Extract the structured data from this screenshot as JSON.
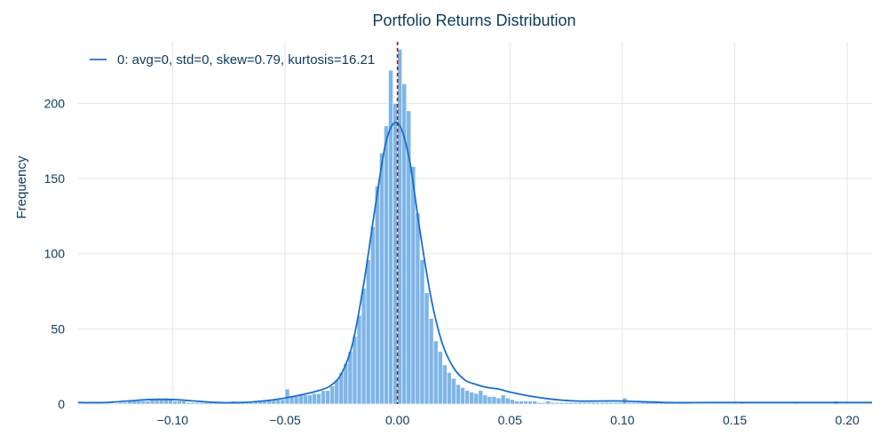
{
  "chart_data": {
    "type": "bar",
    "title": "Portfolio Returns Distribution",
    "xlabel": "",
    "ylabel": "Frequency",
    "xlim": [
      -0.142,
      0.211
    ],
    "ylim": [
      0,
      241
    ],
    "x_ticks": [
      -0.1,
      -0.05,
      0.0,
      0.05,
      0.1,
      0.15,
      0.2
    ],
    "x_tick_labels": [
      "−0.10",
      "−0.05",
      "0.00",
      "0.05",
      "0.10",
      "0.15",
      "0.20"
    ],
    "y_ticks": [
      0,
      50,
      100,
      150,
      200
    ],
    "y_tick_labels": [
      "0",
      "50",
      "100",
      "150",
      "200"
    ],
    "grid": true,
    "legend": {
      "position": "top-left",
      "entries": [
        "0: avg=0, std=0, skew=0.79, kurtosis=16.21"
      ]
    },
    "bin_width": 0.002,
    "histogram": {
      "bin_start": [
        -0.142,
        -0.14,
        -0.138,
        -0.136,
        -0.134,
        -0.132,
        -0.13,
        -0.128,
        -0.126,
        -0.124,
        -0.122,
        -0.12,
        -0.118,
        -0.116,
        -0.114,
        -0.112,
        -0.11,
        -0.108,
        -0.106,
        -0.104,
        -0.102,
        -0.1,
        -0.098,
        -0.096,
        -0.094,
        -0.092,
        -0.09,
        -0.088,
        -0.086,
        -0.084,
        -0.082,
        -0.08,
        -0.078,
        -0.076,
        -0.074,
        -0.072,
        -0.07,
        -0.068,
        -0.066,
        -0.064,
        -0.062,
        -0.06,
        -0.058,
        -0.056,
        -0.054,
        -0.052,
        -0.05,
        -0.048,
        -0.046,
        -0.044,
        -0.042,
        -0.04,
        -0.038,
        -0.036,
        -0.034,
        -0.032,
        -0.03,
        -0.028,
        -0.026,
        -0.024,
        -0.022,
        -0.02,
        -0.018,
        -0.016,
        -0.014,
        -0.012,
        -0.01,
        -0.008,
        -0.006,
        -0.004,
        -0.002,
        0.0,
        0.002,
        0.004,
        0.006,
        0.008,
        0.01,
        0.012,
        0.014,
        0.016,
        0.018,
        0.02,
        0.022,
        0.024,
        0.026,
        0.028,
        0.03,
        0.032,
        0.034,
        0.036,
        0.038,
        0.04,
        0.042,
        0.044,
        0.046,
        0.048,
        0.05,
        0.052,
        0.054,
        0.056,
        0.058,
        0.06,
        0.062,
        0.064,
        0.066,
        0.068,
        0.07,
        0.072,
        0.074,
        0.076,
        0.078,
        0.08,
        0.082,
        0.084,
        0.086,
        0.088,
        0.09,
        0.092,
        0.094,
        0.096,
        0.098,
        0.1,
        0.102,
        0.104,
        0.106,
        0.108,
        0.11,
        0.112,
        0.114,
        0.116,
        0.118,
        0.12,
        0.122,
        0.124,
        0.126,
        0.128,
        0.13,
        0.132,
        0.134,
        0.136,
        0.138,
        0.14,
        0.142,
        0.144,
        0.146,
        0.148,
        0.15,
        0.152,
        0.154,
        0.156,
        0.158,
        0.16,
        0.162,
        0.164,
        0.166,
        0.168,
        0.17,
        0.172,
        0.174,
        0.176,
        0.178,
        0.18,
        0.182,
        0.184,
        0.186,
        0.188,
        0.19,
        0.192,
        0.194,
        0.196,
        0.198,
        0.2,
        0.202,
        0.204,
        0.206,
        0.208
      ],
      "counts": [
        0,
        1,
        0,
        0,
        0,
        0,
        0,
        0,
        0,
        1,
        1,
        2,
        2,
        2,
        2,
        2,
        3,
        3,
        3,
        4,
        3,
        2,
        2,
        2,
        1,
        1,
        1,
        1,
        1,
        1,
        1,
        1,
        1,
        1,
        2,
        1,
        1,
        1,
        1,
        2,
        2,
        2,
        3,
        3,
        3,
        3,
        10,
        5,
        5,
        6,
        6,
        6,
        7,
        7,
        9,
        9,
        12,
        16,
        21,
        27,
        35,
        45,
        59,
        77,
        96,
        118,
        145,
        167,
        185,
        222,
        200,
        236,
        213,
        195,
        158,
        127,
        96,
        74,
        57,
        42,
        35,
        26,
        21,
        17,
        13,
        11,
        9,
        8,
        7,
        9,
        6,
        5,
        5,
        4,
        6,
        4,
        3,
        2,
        2,
        2,
        2,
        2,
        1,
        1,
        2,
        1,
        1,
        1,
        1,
        1,
        1,
        1,
        1,
        1,
        1,
        1,
        1,
        1,
        1,
        1,
        1,
        4,
        1,
        1,
        1,
        1,
        1,
        1,
        1,
        1,
        1,
        1,
        1,
        1,
        1,
        1,
        0,
        0,
        0,
        0,
        0,
        0,
        0,
        0,
        0,
        0,
        0,
        1,
        0,
        0,
        0,
        0,
        0,
        0,
        0,
        0,
        0,
        0,
        0,
        1,
        0,
        0,
        0,
        0,
        0,
        0,
        0,
        0,
        2,
        0,
        0,
        0,
        0,
        0,
        0,
        0,
        0,
        0,
        0,
        0
      ]
    },
    "kde": {
      "x": [
        -0.142,
        -0.13,
        -0.12,
        -0.11,
        -0.1,
        -0.09,
        -0.08,
        -0.07,
        -0.06,
        -0.05,
        -0.04,
        -0.035,
        -0.03,
        -0.025,
        -0.02,
        -0.015,
        -0.01,
        -0.005,
        0.0,
        0.005,
        0.01,
        0.015,
        0.02,
        0.025,
        0.03,
        0.035,
        0.04,
        0.045,
        0.05,
        0.06,
        0.07,
        0.08,
        0.09,
        0.1,
        0.12,
        0.14,
        0.16,
        0.18,
        0.2,
        0.211
      ],
      "y": [
        1,
        1,
        2,
        3,
        3,
        2,
        1,
        1,
        2,
        4,
        7,
        9,
        12,
        20,
        40,
        80,
        130,
        175,
        187,
        165,
        115,
        70,
        40,
        24,
        16,
        13,
        11,
        10,
        8,
        5,
        3,
        2,
        2,
        2,
        1,
        1,
        1,
        1,
        1,
        1
      ]
    },
    "mean_line_x": 0.0,
    "colors": {
      "bars": "#7fb5e8",
      "bar_edge": "#ffffff",
      "kde": "#1a6ec9",
      "mean_line": "#7a2a1a",
      "text": "#0b3a5c",
      "grid": "#e6e6e6"
    }
  }
}
